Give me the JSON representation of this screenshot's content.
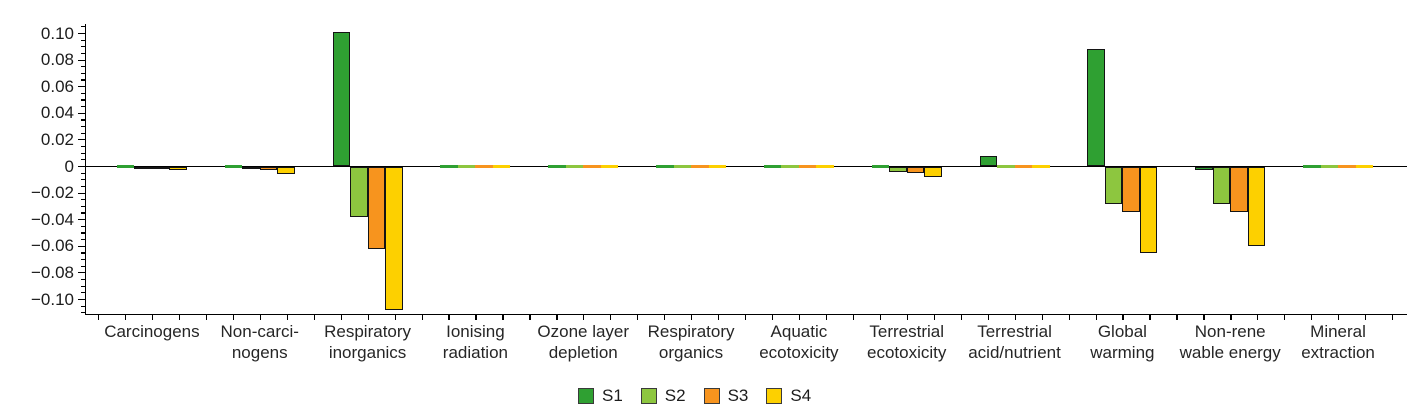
{
  "chart_data": {
    "type": "bar",
    "title": "",
    "xlabel": "",
    "ylabel": "",
    "grid": false,
    "legend_position": "bottom",
    "categories": [
      [
        "Carcinogens"
      ],
      [
        "Non-carci-",
        "nogens"
      ],
      [
        "Respiratory",
        "inorganics"
      ],
      [
        "Ionising",
        "radiation"
      ],
      [
        "Ozone layer",
        "depletion"
      ],
      [
        "Respiratory",
        "organics"
      ],
      [
        "Aquatic",
        "ecotoxicity"
      ],
      [
        "Terrestrial",
        "ecotoxicity"
      ],
      [
        "Terrestrial",
        "acid/nutrient"
      ],
      [
        "Global",
        "warming"
      ],
      [
        "Non-rene",
        "wable energy"
      ],
      [
        "Mineral",
        "extraction"
      ]
    ],
    "series": [
      {
        "name": "S1",
        "color": "#2fa032",
        "values": [
          -0.001,
          -0.0005,
          0.101,
          0,
          0,
          0,
          0,
          -0.001,
          0.008,
          0.088,
          -0.003,
          0
        ]
      },
      {
        "name": "S2",
        "color": "#8dc63f",
        "values": [
          -0.0015,
          -0.002,
          -0.038,
          0,
          0,
          0,
          0,
          -0.004,
          0,
          -0.028,
          -0.028,
          0
        ]
      },
      {
        "name": "S3",
        "color": "#f7941e",
        "values": [
          -0.0015,
          -0.003,
          -0.062,
          0,
          0,
          0,
          0,
          -0.005,
          0,
          -0.034,
          -0.034,
          0
        ]
      },
      {
        "name": "S4",
        "color": "#fdd000",
        "values": [
          -0.0025,
          -0.006,
          -0.108,
          0,
          0,
          0,
          0,
          -0.008,
          0,
          -0.065,
          -0.06,
          0
        ]
      }
    ],
    "ylim": [
      -0.11,
      0.105
    ],
    "y_major_step": 0.02,
    "y_minor_step": 0.005,
    "y_tick_labels": [
      {
        "value": 0.1,
        "label": "0.10"
      },
      {
        "value": 0.08,
        "label": "0.08"
      },
      {
        "value": 0.06,
        "label": "0.06"
      },
      {
        "value": 0.04,
        "label": "0.04"
      },
      {
        "value": 0.02,
        "label": "0.02"
      },
      {
        "value": 0.0,
        "label": "0"
      },
      {
        "value": -0.02,
        "label": "−0.02"
      },
      {
        "value": -0.04,
        "label": "−0.04"
      },
      {
        "value": -0.06,
        "label": "−0.06"
      },
      {
        "value": -0.08,
        "label": "−0.08"
      },
      {
        "value": -0.1,
        "label": "−0.10"
      }
    ],
    "legend_entries": [
      "S1",
      "S2",
      "S3",
      "S4"
    ],
    "axis_color": "#000000"
  }
}
